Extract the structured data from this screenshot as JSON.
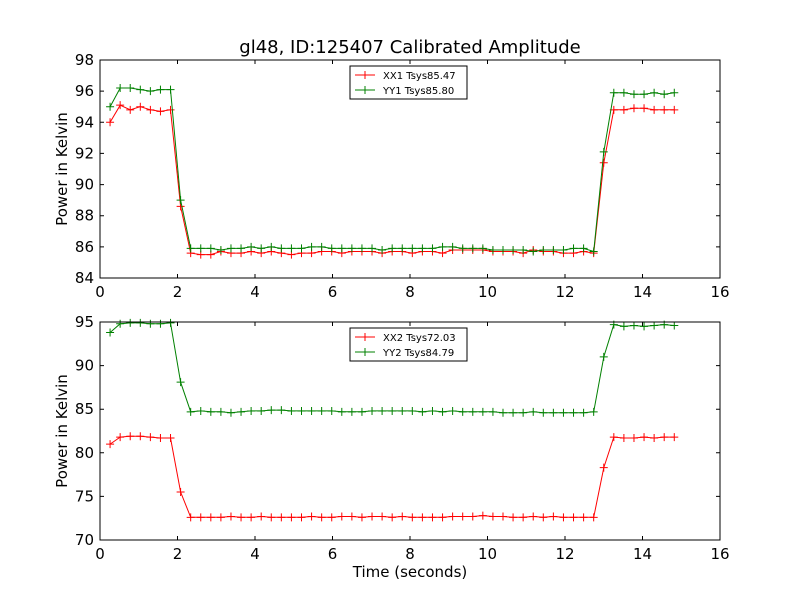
{
  "title": "gl48, ID:125407 Calibrated Amplitude",
  "chart_data": [
    {
      "type": "line",
      "ylabel": "Power in Kelvin",
      "xlabel": "",
      "xlim": [
        0,
        16
      ],
      "ylim": [
        84,
        98
      ],
      "xticks": [
        "0",
        "2",
        "4",
        "6",
        "8",
        "10",
        "12",
        "14",
        "16"
      ],
      "yticks": [
        "84",
        "86",
        "88",
        "90",
        "92",
        "94",
        "96",
        "98"
      ],
      "legend": "top-center",
      "x": [
        0.26,
        0.52,
        0.78,
        1.04,
        1.3,
        1.56,
        1.82,
        2.08,
        2.34,
        2.6,
        2.86,
        3.12,
        3.38,
        3.64,
        3.9,
        4.16,
        4.42,
        4.68,
        4.94,
        5.2,
        5.46,
        5.72,
        5.98,
        6.24,
        6.5,
        6.76,
        7.02,
        7.28,
        7.54,
        7.8,
        8.06,
        8.32,
        8.58,
        8.84,
        9.1,
        9.36,
        9.62,
        9.88,
        10.14,
        10.4,
        10.66,
        10.92,
        11.18,
        11.44,
        11.7,
        11.96,
        12.22,
        12.48,
        12.74,
        13.0,
        13.26,
        13.52,
        13.78,
        14.04,
        14.3,
        14.56,
        14.82
      ],
      "series": [
        {
          "name": "XX1 Tsys85.47",
          "color": "#ff0000",
          "values": [
            94.0,
            95.1,
            94.8,
            95.0,
            94.8,
            94.7,
            94.8,
            88.6,
            85.6,
            85.5,
            85.5,
            85.7,
            85.6,
            85.6,
            85.7,
            85.6,
            85.7,
            85.6,
            85.5,
            85.6,
            85.6,
            85.7,
            85.7,
            85.6,
            85.7,
            85.7,
            85.7,
            85.6,
            85.7,
            85.7,
            85.6,
            85.7,
            85.7,
            85.6,
            85.8,
            85.8,
            85.8,
            85.8,
            85.7,
            85.7,
            85.7,
            85.6,
            85.8,
            85.7,
            85.7,
            85.6,
            85.6,
            85.7,
            85.6,
            91.4,
            94.8,
            94.8,
            94.9,
            94.9,
            94.8,
            94.8,
            94.8
          ]
        },
        {
          "name": "YY1 Tsys85.80",
          "color": "#008000",
          "values": [
            95.0,
            96.2,
            96.2,
            96.1,
            96.0,
            96.1,
            96.1,
            89.0,
            85.9,
            85.9,
            85.9,
            85.8,
            85.9,
            85.9,
            86.0,
            85.9,
            86.0,
            85.9,
            85.9,
            85.9,
            86.0,
            86.0,
            85.9,
            85.9,
            85.9,
            85.9,
            85.9,
            85.8,
            85.9,
            85.9,
            85.9,
            85.9,
            85.9,
            86.0,
            86.0,
            85.9,
            85.9,
            85.9,
            85.8,
            85.8,
            85.8,
            85.8,
            85.7,
            85.8,
            85.8,
            85.8,
            85.9,
            85.9,
            85.7,
            92.1,
            95.9,
            95.9,
            95.8,
            95.8,
            95.9,
            95.8,
            95.9
          ]
        }
      ]
    },
    {
      "type": "line",
      "ylabel": "Power in Kelvin",
      "xlabel": "Time (seconds)",
      "xlim": [
        0,
        16
      ],
      "ylim": [
        70,
        95
      ],
      "xticks": [
        "0",
        "2",
        "4",
        "6",
        "8",
        "10",
        "12",
        "14",
        "16"
      ],
      "yticks": [
        "70",
        "75",
        "80",
        "85",
        "90",
        "95"
      ],
      "legend": "top-center",
      "x": [
        0.26,
        0.52,
        0.78,
        1.04,
        1.3,
        1.56,
        1.82,
        2.08,
        2.34,
        2.6,
        2.86,
        3.12,
        3.38,
        3.64,
        3.9,
        4.16,
        4.42,
        4.68,
        4.94,
        5.2,
        5.46,
        5.72,
        5.98,
        6.24,
        6.5,
        6.76,
        7.02,
        7.28,
        7.54,
        7.8,
        8.06,
        8.32,
        8.58,
        8.84,
        9.1,
        9.36,
        9.62,
        9.88,
        10.14,
        10.4,
        10.66,
        10.92,
        11.18,
        11.44,
        11.7,
        11.96,
        12.22,
        12.48,
        12.74,
        13.0,
        13.26,
        13.52,
        13.78,
        14.04,
        14.3,
        14.56,
        14.82
      ],
      "series": [
        {
          "name": "XX2 Tsys72.03",
          "color": "#ff0000",
          "values": [
            81.0,
            81.8,
            81.9,
            81.9,
            81.8,
            81.7,
            81.7,
            75.5,
            72.6,
            72.6,
            72.6,
            72.6,
            72.7,
            72.6,
            72.6,
            72.7,
            72.6,
            72.6,
            72.6,
            72.6,
            72.7,
            72.6,
            72.6,
            72.7,
            72.7,
            72.6,
            72.7,
            72.7,
            72.6,
            72.7,
            72.6,
            72.6,
            72.6,
            72.6,
            72.7,
            72.7,
            72.7,
            72.8,
            72.7,
            72.7,
            72.6,
            72.6,
            72.7,
            72.6,
            72.7,
            72.6,
            72.6,
            72.6,
            72.6,
            78.3,
            81.8,
            81.7,
            81.7,
            81.8,
            81.7,
            81.8,
            81.8
          ]
        },
        {
          "name": "YY2 Tsys84.79",
          "color": "#008000",
          "values": [
            93.8,
            94.8,
            94.9,
            94.9,
            94.8,
            94.8,
            94.9,
            88.1,
            84.7,
            84.8,
            84.7,
            84.7,
            84.6,
            84.7,
            84.8,
            84.8,
            84.9,
            84.9,
            84.8,
            84.8,
            84.8,
            84.8,
            84.8,
            84.7,
            84.7,
            84.7,
            84.8,
            84.8,
            84.8,
            84.8,
            84.8,
            84.7,
            84.8,
            84.7,
            84.8,
            84.7,
            84.7,
            84.7,
            84.7,
            84.6,
            84.6,
            84.6,
            84.7,
            84.6,
            84.6,
            84.6,
            84.6,
            84.6,
            84.7,
            91.0,
            94.7,
            94.5,
            94.6,
            94.5,
            94.6,
            94.7,
            94.6
          ]
        }
      ]
    }
  ]
}
